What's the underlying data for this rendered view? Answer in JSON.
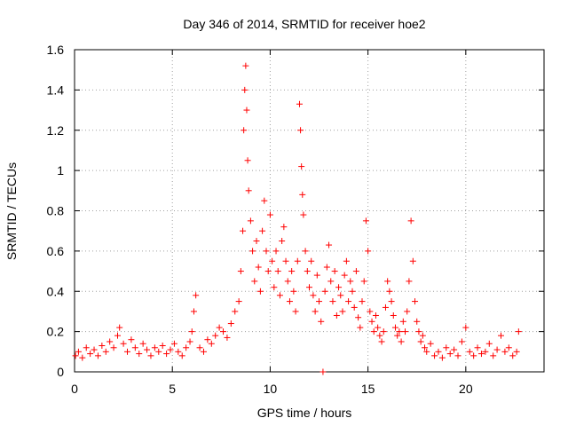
{
  "chart_data": {
    "type": "scatter",
    "title": "Day 346 of 2014, SRMTID for receiver hoe2",
    "xlabel": "GPS time / hours",
    "ylabel": "SRMTID / TECUs",
    "xlim": [
      0,
      24
    ],
    "ylim": [
      0,
      1.6
    ],
    "xticks": [
      0,
      5,
      10,
      15,
      20
    ],
    "xtick_labels": [
      "0",
      "5",
      "10",
      "15",
      "20"
    ],
    "yticks": [
      0,
      0.2,
      0.4,
      0.6,
      0.8,
      1.0,
      1.2,
      1.4,
      1.6
    ],
    "ytick_labels": [
      "0",
      "0.2",
      "0.4",
      "0.6",
      "0.8",
      "1",
      "1.2",
      "1.4",
      "1.6"
    ],
    "grid": true,
    "marker": "plus",
    "color": "#ff0000",
    "series": [
      {
        "name": "SRMTID",
        "x": [
          0.05,
          0.2,
          0.4,
          0.6,
          0.8,
          1.0,
          1.2,
          1.4,
          1.6,
          1.8,
          2.0,
          2.2,
          2.3,
          2.5,
          2.7,
          2.9,
          3.1,
          3.3,
          3.5,
          3.7,
          3.9,
          4.1,
          4.3,
          4.5,
          4.7,
          4.9,
          5.1,
          5.3,
          5.5,
          5.7,
          5.9,
          6.0,
          6.1,
          6.2,
          6.4,
          6.6,
          6.8,
          7.0,
          7.2,
          7.4,
          7.6,
          7.8,
          8.0,
          8.2,
          8.4,
          8.5,
          8.6,
          8.65,
          8.7,
          8.75,
          8.8,
          8.85,
          8.9,
          9.0,
          9.1,
          9.2,
          9.3,
          9.4,
          9.5,
          9.6,
          9.7,
          9.8,
          9.9,
          10.0,
          10.1,
          10.2,
          10.3,
          10.4,
          10.5,
          10.6,
          10.7,
          10.8,
          10.9,
          11.0,
          11.1,
          11.2,
          11.3,
          11.4,
          11.5,
          11.55,
          11.6,
          11.65,
          11.7,
          11.8,
          11.9,
          12.0,
          12.1,
          12.2,
          12.3,
          12.4,
          12.5,
          12.6,
          12.7,
          12.8,
          12.9,
          13.0,
          13.1,
          13.2,
          13.3,
          13.4,
          13.5,
          13.6,
          13.7,
          13.8,
          13.9,
          14.0,
          14.1,
          14.2,
          14.3,
          14.4,
          14.5,
          14.6,
          14.7,
          14.8,
          14.9,
          15.0,
          15.1,
          15.2,
          15.3,
          15.4,
          15.5,
          15.6,
          15.7,
          15.8,
          15.9,
          16.0,
          16.1,
          16.2,
          16.3,
          16.4,
          16.5,
          16.6,
          16.7,
          16.8,
          16.9,
          17.0,
          17.1,
          17.2,
          17.3,
          17.4,
          17.5,
          17.6,
          17.7,
          17.8,
          17.9,
          18.0,
          18.2,
          18.4,
          18.6,
          18.8,
          19.0,
          19.2,
          19.4,
          19.6,
          19.8,
          20.0,
          20.2,
          20.4,
          20.6,
          20.8,
          21.0,
          21.2,
          21.4,
          21.6,
          21.8,
          22.0,
          22.2,
          22.4,
          22.6,
          22.7
        ],
        "y": [
          0.08,
          0.1,
          0.07,
          0.12,
          0.09,
          0.11,
          0.08,
          0.13,
          0.1,
          0.15,
          0.12,
          0.18,
          0.22,
          0.14,
          0.1,
          0.16,
          0.12,
          0.09,
          0.14,
          0.11,
          0.08,
          0.12,
          0.1,
          0.13,
          0.09,
          0.11,
          0.14,
          0.1,
          0.08,
          0.12,
          0.15,
          0.2,
          0.3,
          0.38,
          0.12,
          0.1,
          0.16,
          0.14,
          0.18,
          0.22,
          0.2,
          0.17,
          0.24,
          0.3,
          0.35,
          0.5,
          0.7,
          1.2,
          1.4,
          1.52,
          1.3,
          1.05,
          0.9,
          0.75,
          0.6,
          0.45,
          0.65,
          0.52,
          0.4,
          0.7,
          0.85,
          0.6,
          0.5,
          0.78,
          0.55,
          0.42,
          0.6,
          0.5,
          0.38,
          0.65,
          0.72,
          0.55,
          0.45,
          0.35,
          0.5,
          0.4,
          0.3,
          0.55,
          1.33,
          1.2,
          1.02,
          0.88,
          0.78,
          0.6,
          0.5,
          0.42,
          0.55,
          0.38,
          0.3,
          0.48,
          0.35,
          0.25,
          0.0,
          0.4,
          0.52,
          0.63,
          0.45,
          0.35,
          0.5,
          0.28,
          0.42,
          0.38,
          0.3,
          0.48,
          0.55,
          0.35,
          0.45,
          0.4,
          0.32,
          0.5,
          0.27,
          0.22,
          0.35,
          0.45,
          0.75,
          0.6,
          0.3,
          0.25,
          0.2,
          0.28,
          0.22,
          0.18,
          0.15,
          0.2,
          0.32,
          0.45,
          0.4,
          0.35,
          0.28,
          0.22,
          0.18,
          0.2,
          0.15,
          0.25,
          0.2,
          0.3,
          0.45,
          0.75,
          0.55,
          0.35,
          0.25,
          0.2,
          0.15,
          0.18,
          0.12,
          0.1,
          0.14,
          0.08,
          0.1,
          0.07,
          0.12,
          0.09,
          0.11,
          0.08,
          0.15,
          0.22,
          0.1,
          0.08,
          0.12,
          0.09,
          0.1,
          0.14,
          0.08,
          0.11,
          0.18,
          0.1,
          0.12,
          0.08,
          0.1,
          0.2
        ]
      }
    ]
  }
}
